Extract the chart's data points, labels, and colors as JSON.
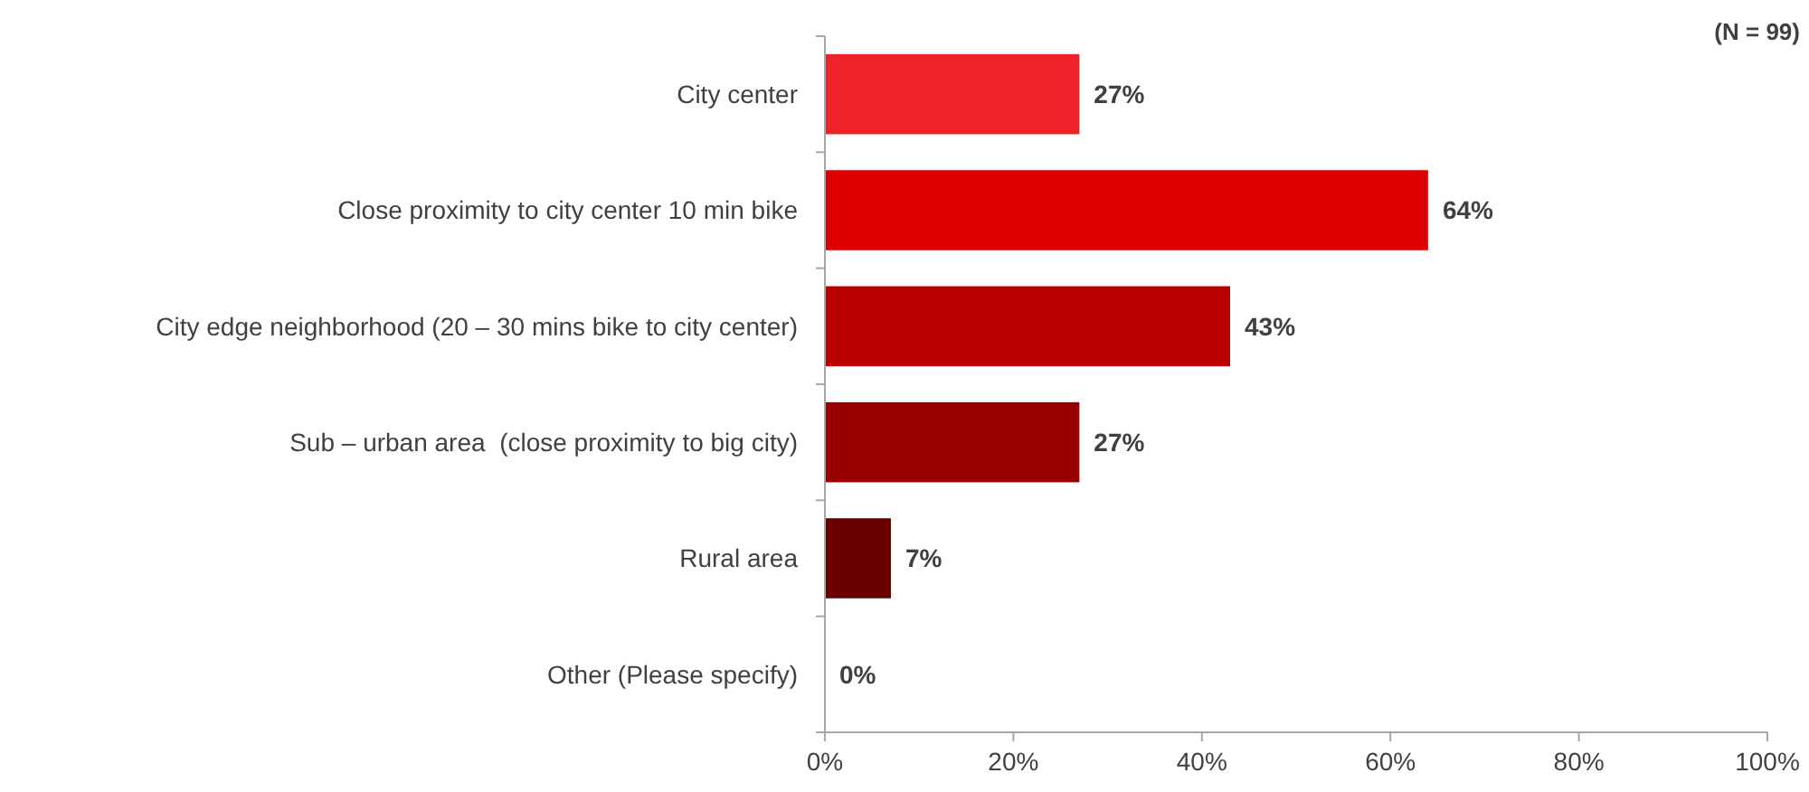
{
  "chart_data": {
    "type": "bar",
    "orientation": "horizontal",
    "categories": [
      "City center",
      "Close proximity to city center 10 min bike",
      "City edge neighborhood (20 – 30 mins bike to city center)",
      "Sub – urban area  (close proximity to big city)",
      "Rural area",
      "Other (Please specify)"
    ],
    "values": [
      27,
      64,
      43,
      27,
      7,
      0
    ],
    "colors": [
      "#ee2229",
      "#de0000",
      "#bb0000",
      "#990000",
      "#6b0000",
      "#4a0000"
    ],
    "value_labels": [
      "27%",
      "64%",
      "43%",
      "27%",
      "7%",
      "0%"
    ],
    "xlim": [
      0,
      100
    ],
    "xticks": [
      {
        "value": 0,
        "label": "0%"
      },
      {
        "value": 20,
        "label": "20%"
      },
      {
        "value": 40,
        "label": "40%"
      },
      {
        "value": 60,
        "label": "60%"
      },
      {
        "value": 80,
        "label": "80%"
      },
      {
        "value": 100,
        "label": "100%"
      }
    ],
    "annotations": [
      "(N = 99)"
    ],
    "grid": false
  }
}
